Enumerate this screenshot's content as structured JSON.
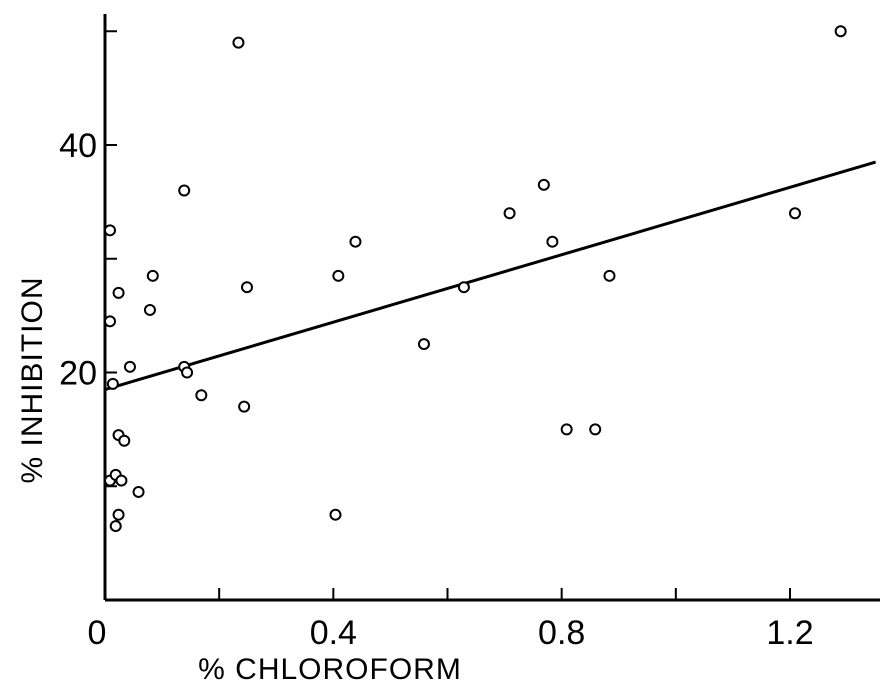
{
  "chart_data": {
    "type": "scatter",
    "title": "",
    "xlabel": "% CHLOROFORM",
    "ylabel": "% INHIBITION",
    "xlim": [
      0,
      1.35
    ],
    "ylim": [
      0,
      50
    ],
    "x_ticks": [
      0,
      0.2,
      0.4,
      0.6,
      0.8,
      1.0,
      1.2
    ],
    "x_tick_labels": [
      "0",
      "",
      "0.4",
      "",
      "0.8",
      "",
      "1.2"
    ],
    "y_ticks": [
      0,
      10,
      20,
      30,
      40,
      50
    ],
    "y_tick_labels": [
      "0",
      "",
      "20",
      "",
      "40",
      ""
    ],
    "grid": false,
    "points": [
      {
        "x": 0.0,
        "y": 32.5
      },
      {
        "x": 0.0,
        "y": 24.5
      },
      {
        "x": 0.015,
        "y": 27
      },
      {
        "x": 0.005,
        "y": 19
      },
      {
        "x": 0.015,
        "y": 14.5
      },
      {
        "x": 0.025,
        "y": 14
      },
      {
        "x": 0.0,
        "y": 10.5
      },
      {
        "x": 0.01,
        "y": 11
      },
      {
        "x": 0.02,
        "y": 10.5
      },
      {
        "x": 0.015,
        "y": 7.5
      },
      {
        "x": 0.01,
        "y": 6.5
      },
      {
        "x": 0.035,
        "y": 20.5
      },
      {
        "x": 0.05,
        "y": 9.5
      },
      {
        "x": 0.075,
        "y": 28.5
      },
      {
        "x": 0.07,
        "y": 25.5
      },
      {
        "x": 0.13,
        "y": 36
      },
      {
        "x": 0.13,
        "y": 20.5
      },
      {
        "x": 0.135,
        "y": 20
      },
      {
        "x": 0.16,
        "y": 18
      },
      {
        "x": 0.225,
        "y": 49
      },
      {
        "x": 0.24,
        "y": 27.5
      },
      {
        "x": 0.235,
        "y": 17
      },
      {
        "x": 0.4,
        "y": 28.5
      },
      {
        "x": 0.43,
        "y": 31.5
      },
      {
        "x": 0.395,
        "y": 7.5
      },
      {
        "x": 0.55,
        "y": 22.5
      },
      {
        "x": 0.62,
        "y": 27.5
      },
      {
        "x": 0.7,
        "y": 34
      },
      {
        "x": 0.76,
        "y": 36.5
      },
      {
        "x": 0.775,
        "y": 31.5
      },
      {
        "x": 0.8,
        "y": 15
      },
      {
        "x": 0.85,
        "y": 15
      },
      {
        "x": 0.875,
        "y": 28.5
      },
      {
        "x": 1.2,
        "y": 34
      },
      {
        "x": 1.28,
        "y": 50
      }
    ],
    "fit_line": {
      "x": [
        0.0,
        1.35
      ],
      "y": [
        18.5,
        38.5
      ]
    }
  }
}
